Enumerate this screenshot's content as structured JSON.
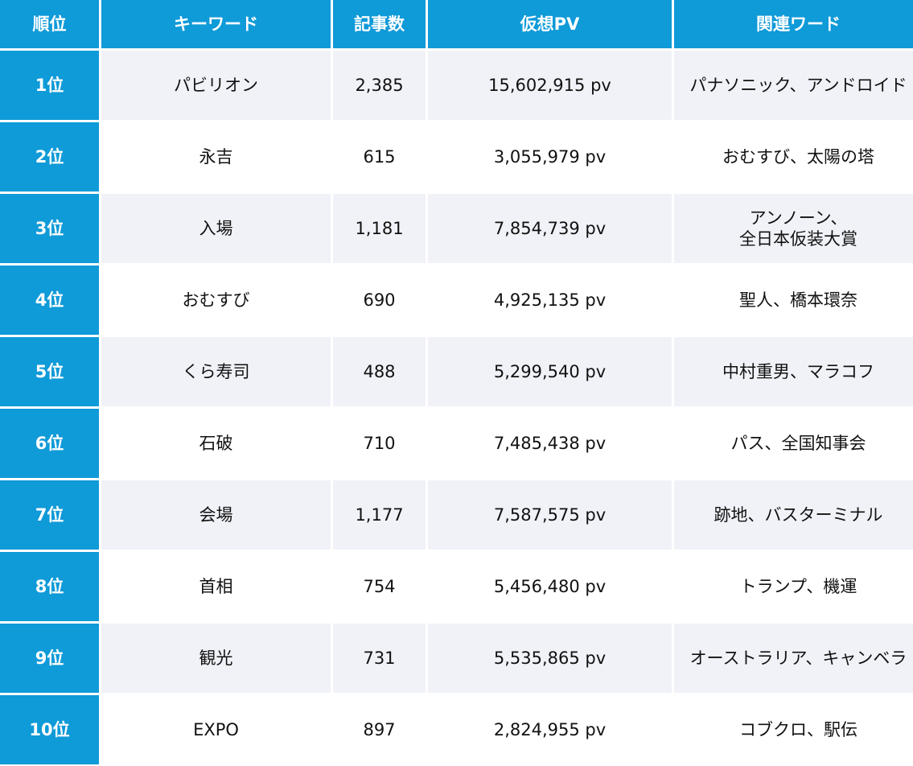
{
  "header": {
    "rank": "順位",
    "keyword": "キーワード",
    "articles": "記事数",
    "pv": "仮想PV",
    "related": "関連ワード"
  },
  "rows": [
    {
      "rank": "1位",
      "keyword": "パビリオン",
      "articles": "2,385",
      "pv": "15,602,915 pv",
      "related": "パナソニック、アンドロイド"
    },
    {
      "rank": "2位",
      "keyword": "永吉",
      "articles": "615",
      "pv": "3,055,979 pv",
      "related": "おむすび、太陽の塔"
    },
    {
      "rank": "3位",
      "keyword": "入場",
      "articles": "1,181",
      "pv": "7,854,739 pv",
      "related": "アンノーン、\n全日本仮装大賞"
    },
    {
      "rank": "4位",
      "keyword": "おむすび",
      "articles": "690",
      "pv": "4,925,135 pv",
      "related": "聖人、橋本環奈"
    },
    {
      "rank": "5位",
      "keyword": "くら寿司",
      "articles": "488",
      "pv": "5,299,540 pv",
      "related": "中村重男、マラコフ"
    },
    {
      "rank": "6位",
      "keyword": "石破",
      "articles": "710",
      "pv": "7,485,438 pv",
      "related": "パス、全国知事会"
    },
    {
      "rank": "7位",
      "keyword": "会場",
      "articles": "1,177",
      "pv": "7,587,575 pv",
      "related": "跡地、バスターミナル"
    },
    {
      "rank": "8位",
      "keyword": "首相",
      "articles": "754",
      "pv": "5,456,480 pv",
      "related": "トランプ、機運"
    },
    {
      "rank": "9位",
      "keyword": "観光",
      "articles": "731",
      "pv": "5,535,865 pv",
      "related": "オーストラリア、キャンベラ"
    },
    {
      "rank": "10位",
      "keyword": "EXPO",
      "articles": "897",
      "pv": "2,824,955 pv",
      "related": "コブクロ、駅伝"
    }
  ],
  "colors": {
    "header_bg": "#0f9ad8",
    "header_text": "#ffffff",
    "row_alt_bg": "#f1f2f8",
    "row_bg": "#ffffff"
  }
}
